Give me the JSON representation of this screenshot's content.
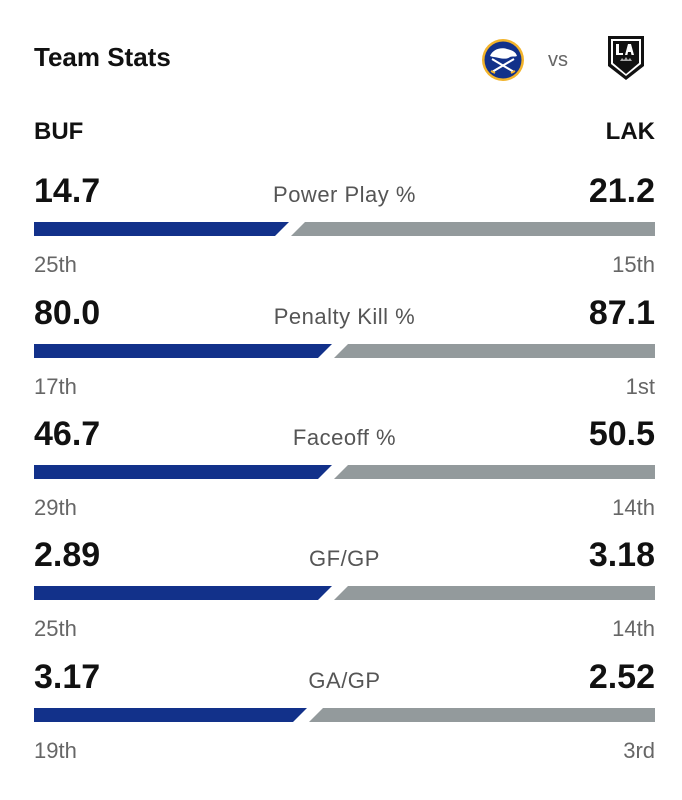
{
  "header": {
    "title": "Team Stats",
    "vs_label": "vs",
    "home_logo_icon": "sabres-logo-icon",
    "away_logo_icon": "kings-logo-icon"
  },
  "teams": {
    "left": "BUF",
    "right": "LAK",
    "left_color": "#12318a",
    "right_color": "#939a9c"
  },
  "stats": [
    {
      "label": "Power Play %",
      "left_value": "14.7",
      "right_value": "21.2",
      "left_rank": "25th",
      "right_rank": "15th",
      "left_share": 0.41
    },
    {
      "label": "Penalty Kill %",
      "left_value": "80.0",
      "right_value": "87.1",
      "left_rank": "17th",
      "right_rank": "1st",
      "left_share": 0.48
    },
    {
      "label": "Faceoff %",
      "left_value": "46.7",
      "right_value": "50.5",
      "left_rank": "29th",
      "right_rank": "14th",
      "left_share": 0.48
    },
    {
      "label": "GF/GP",
      "left_value": "2.89",
      "right_value": "3.18",
      "left_rank": "25th",
      "right_rank": "14th",
      "left_share": 0.48
    },
    {
      "label": "GA/GP",
      "left_value": "3.17",
      "right_value": "2.52",
      "left_rank": "19th",
      "right_rank": "3rd",
      "left_share": 0.44
    }
  ]
}
